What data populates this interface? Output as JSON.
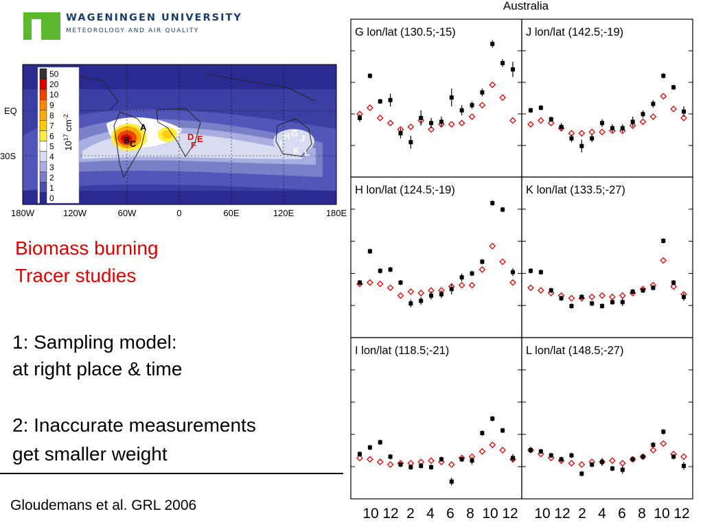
{
  "logo": {
    "line1": "WAGENINGEN UNIVERSITY",
    "line2": "METEOROLOGY AND AIR QUALITY",
    "green": "#5cb82d",
    "navy": "#1a3d6b"
  },
  "text": {
    "heading1": "Biomass burning",
    "heading2": "Tracer studies",
    "point1a": "1: Sampling model:",
    "point1b": "at right place & time",
    "point2a": "2: Inaccurate measurements",
    "point2b": "get smaller weight",
    "citation": "Gloudemans et al. GRL 2006"
  },
  "map": {
    "lat_labels": [
      "EQ",
      "30S"
    ],
    "lon_labels": [
      "180W",
      "120W",
      "60W",
      "0",
      "60E",
      "120E",
      "180E"
    ],
    "colorbar_levels": [
      "50",
      "20",
      "10",
      "9",
      "8",
      "7",
      "6",
      "5",
      "4",
      "3",
      "2",
      "1",
      "0"
    ],
    "colorbar_colors": [
      "#333333",
      "#dd0000",
      "#ee4400",
      "#ff8800",
      "#ffaa00",
      "#ffcc00",
      "#ffee44",
      "#ffffff",
      "#d8dcf0",
      "#a9aee0",
      "#7a80c8",
      "#4a4fb0",
      "#2a2a90"
    ],
    "colorbar_unit_main": "10",
    "colorbar_unit_exp": "17",
    "colorbar_unit_rest": " cm",
    "colorbar_unit_exp2": "-2",
    "site_labels": [
      {
        "t": "A",
        "c": "#000000"
      },
      {
        "t": "B",
        "c": "#000000"
      },
      {
        "t": "C",
        "c": "#000000"
      },
      {
        "t": "D",
        "c": "#dd1111"
      },
      {
        "t": "E",
        "c": "#dd1111"
      },
      {
        "t": "F",
        "c": "#dd1111"
      },
      {
        "t": "G",
        "c": "#ffffff"
      },
      {
        "t": "H",
        "c": "#ffffff"
      },
      {
        "t": "I",
        "c": "#ffffff"
      },
      {
        "t": "J",
        "c": "#ffffff"
      },
      {
        "t": "K",
        "c": "#ffffff"
      },
      {
        "t": "L",
        "c": "#ffffff"
      }
    ]
  },
  "chart_data": {
    "type": "scatter",
    "title": "Australia",
    "x_tick_labels": [
      "10",
      "12",
      "2",
      "4",
      "6",
      "8",
      "10",
      "12"
    ],
    "x_months": [
      9,
      10,
      11,
      12,
      1,
      2,
      3,
      4,
      5,
      6,
      7,
      8,
      9,
      10,
      11,
      12
    ],
    "ylim": [
      0,
      1
    ],
    "legend": "none",
    "series_colors": {
      "measured": "#000000",
      "model": "#dd1111"
    },
    "panels": [
      {
        "name": "G lon/lat (130.5;-15)",
        "measured": [
          0.42,
          0.75,
          0.55,
          0.56,
          0.3,
          0.23,
          0.42,
          0.38,
          0.39,
          0.58,
          0.48,
          0.52,
          0.62,
          1.0,
          0.85,
          0.8
        ],
        "measured_err": [
          0.03,
          0.02,
          0.02,
          0.05,
          0.04,
          0.05,
          0.06,
          0.04,
          0.04,
          0.07,
          0.04,
          0.03,
          0.03,
          0.03,
          0.03,
          0.06
        ],
        "model": [
          0.45,
          0.5,
          0.42,
          0.38,
          0.33,
          0.35,
          0.4,
          0.33,
          0.37,
          0.37,
          0.38,
          0.43,
          0.52,
          0.68,
          0.58,
          0.4
        ]
      },
      {
        "name": "J lon/lat (142.5;-19)",
        "measured": [
          0.48,
          0.5,
          0.41,
          0.35,
          0.26,
          0.2,
          0.26,
          0.38,
          0.34,
          0.34,
          0.39,
          0.45,
          0.53,
          0.75,
          0.66,
          0.47
        ],
        "measured_err": [
          0.02,
          0.02,
          0.02,
          0.03,
          0.03,
          0.05,
          0.03,
          0.03,
          0.03,
          0.03,
          0.04,
          0.03,
          0.03,
          0.02,
          0.02,
          0.04
        ],
        "model": [
          0.37,
          0.4,
          0.38,
          0.34,
          0.3,
          0.3,
          0.31,
          0.31,
          0.32,
          0.32,
          0.36,
          0.39,
          0.43,
          0.59,
          0.49,
          0.42
        ]
      },
      {
        "name": "H lon/lat (124.5;-19)",
        "measured": [
          0.38,
          0.62,
          0.47,
          0.48,
          0.38,
          0.22,
          0.24,
          0.28,
          0.29,
          0.33,
          0.42,
          0.45,
          0.54,
          0.99,
          0.94,
          0.46
        ],
        "measured_err": [
          0.02,
          0.02,
          0.02,
          0.02,
          0.02,
          0.03,
          0.03,
          0.03,
          0.03,
          0.04,
          0.03,
          0.02,
          0.02,
          0.02,
          0.02,
          0.03
        ],
        "model": [
          0.37,
          0.38,
          0.37,
          0.34,
          0.28,
          0.31,
          0.3,
          0.32,
          0.32,
          0.35,
          0.36,
          0.36,
          0.48,
          0.66,
          0.54,
          0.38
        ]
      },
      {
        "name": "K lon/lat (133.5;-27)",
        "measured": [
          0.47,
          0.46,
          0.32,
          0.26,
          0.2,
          0.27,
          0.22,
          0.2,
          0.23,
          0.23,
          0.31,
          0.32,
          0.34,
          0.7,
          0.38,
          0.27
        ],
        "measured_err": [
          0.02,
          0.02,
          0.02,
          0.02,
          0.02,
          0.02,
          0.02,
          0.02,
          0.02,
          0.03,
          0.02,
          0.02,
          0.02,
          0.02,
          0.02,
          0.03
        ],
        "model": [
          0.34,
          0.32,
          0.3,
          0.28,
          0.26,
          0.26,
          0.27,
          0.28,
          0.27,
          0.28,
          0.3,
          0.33,
          0.36,
          0.55,
          0.35,
          0.29
        ]
      },
      {
        "name": "I lon/lat (118.5;-21)",
        "measured": [
          0.3,
          0.35,
          0.39,
          0.28,
          0.22,
          0.2,
          0.21,
          0.2,
          0.26,
          0.09,
          0.26,
          0.25,
          0.46,
          0.57,
          0.48,
          0.27
        ],
        "measured_err": [
          0.02,
          0.02,
          0.02,
          0.02,
          0.02,
          0.02,
          0.02,
          0.02,
          0.02,
          0.03,
          0.02,
          0.03,
          0.02,
          0.02,
          0.02,
          0.03
        ],
        "model": [
          0.27,
          0.26,
          0.24,
          0.22,
          0.23,
          0.23,
          0.24,
          0.25,
          0.24,
          0.22,
          0.27,
          0.28,
          0.32,
          0.37,
          0.33,
          0.26
        ]
      },
      {
        "name": "L lon/lat (148.5;-27)",
        "measured": [
          0.33,
          0.32,
          0.29,
          0.26,
          0.29,
          0.15,
          0.22,
          0.24,
          0.19,
          0.18,
          0.26,
          0.28,
          0.37,
          0.47,
          0.28,
          0.21
        ],
        "measured_err": [
          0.02,
          0.02,
          0.02,
          0.02,
          0.02,
          0.02,
          0.02,
          0.03,
          0.02,
          0.03,
          0.02,
          0.02,
          0.02,
          0.02,
          0.02,
          0.03
        ],
        "model": [
          0.33,
          0.3,
          0.27,
          0.25,
          0.23,
          0.22,
          0.24,
          0.24,
          0.25,
          0.23,
          0.26,
          0.28,
          0.33,
          0.38,
          0.3,
          0.28
        ]
      }
    ]
  }
}
